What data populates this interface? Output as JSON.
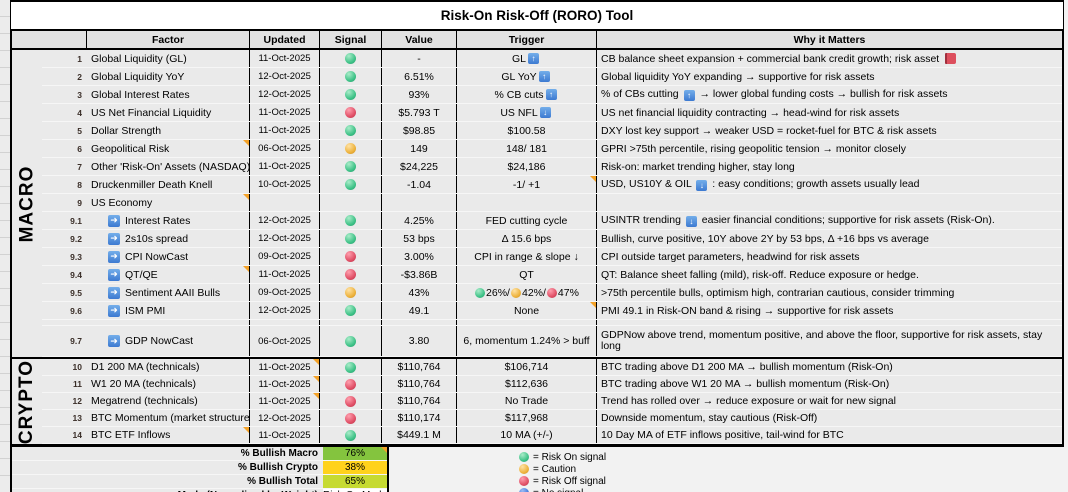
{
  "title": "Risk-On Risk-Off (RORO) Tool",
  "columns": [
    "Factor",
    "Updated",
    "Signal",
    "Value",
    "Trigger",
    "Why it Matters"
  ],
  "colors": {
    "green": "#3ec287",
    "green_hi": "#a9ecc9",
    "green_dk": "#24996a",
    "amber": "#edb23c",
    "amber_hi": "#ffe2a4",
    "amber_dk": "#c88a1e",
    "red": "#e04f66",
    "red_hi": "#ff9fae",
    "red_dk": "#b53248",
    "blue": "#4579dd",
    "blue_hi": "#9cbdf5",
    "blue_dk": "#2b56b0",
    "note": "#f3a229",
    "macro_pct_bg": "#84c43e",
    "crypto_pct_bg": "#ffd21c",
    "total_pct_bg": "#c6da32",
    "mode_bg": "#ffffff"
  },
  "sections": [
    {
      "name": "MACRO",
      "rows": [
        {
          "num": "1",
          "factor": "Global Liquidity (GL)",
          "sub": false,
          "updated": "11-Oct-2025",
          "signal": "green",
          "value": "-",
          "trigger": "GL [up]",
          "why": "CB balance sheet expansion + commercial bank credit growth; risk asset [book]",
          "note": ""
        },
        {
          "num": "2",
          "factor": "Global Liquidity YoY",
          "sub": false,
          "updated": "12-Oct-2025",
          "signal": "green",
          "value": "6.51%",
          "trigger": "GL YoY [up]",
          "why": "Global liquidity YoY expanding → supportive for risk assets",
          "note": ""
        },
        {
          "num": "3",
          "factor": "Global Interest Rates",
          "sub": false,
          "updated": "12-Oct-2025",
          "signal": "green",
          "value": "93%",
          "trigger": "% CB cuts [up]",
          "why": "% of CBs cutting [up] → lower global funding costs → bullish for risk assets",
          "note": ""
        },
        {
          "num": "4",
          "factor": "US Net Financial Liquidity",
          "sub": false,
          "updated": "11-Oct-2025",
          "signal": "red",
          "value": "$5.793 T",
          "trigger": "US NFL [down]",
          "why": "US net financial liquidity contracting → head-wind for risk assets",
          "note": ""
        },
        {
          "num": "5",
          "factor": "Dollar Strength",
          "sub": false,
          "updated": "11-Oct-2025",
          "signal": "green",
          "value": "$98.85",
          "trigger": "$100.58",
          "why": "DXY lost key support → weaker USD = rocket-fuel for BTC & risk assets",
          "note": ""
        },
        {
          "num": "6",
          "factor": "Geopolitical Risk",
          "sub": false,
          "updated": "06-Oct-2025",
          "signal": "amber",
          "value": "149",
          "trigger": "148/ 181",
          "why": "GPRI >75th percentile, rising geopolitic tension → monitor closely",
          "note": "factor"
        },
        {
          "num": "7",
          "factor": "Other 'Risk-On' Assets (NASDAQ)",
          "sub": false,
          "updated": "11-Oct-2025",
          "signal": "green",
          "value": "$24,225",
          "trigger": "$24,186",
          "why": "Risk-on: market trending higher, stay long",
          "note": ""
        },
        {
          "num": "8",
          "factor": "Druckenmiller Death Knell",
          "sub": false,
          "updated": "10-Oct-2025",
          "signal": "green",
          "value": "-1.04",
          "trigger": "-1/ +1",
          "why": "USD, US10Y & OIL [down] : easy conditions; growth assets usually lead",
          "note": "trigger"
        },
        {
          "num": "9",
          "factor": "US Economy",
          "sub": false,
          "updated": "",
          "signal": "",
          "value": "",
          "trigger": "",
          "why": "",
          "note": "factor"
        },
        {
          "num": "9.1",
          "factor": "Interest Rates",
          "sub": true,
          "updated": "12-Oct-2025",
          "signal": "green",
          "value": "4.25%",
          "trigger": "FED cutting cycle",
          "why": "USINTR trending [down] easier financial conditions; supportive for risk assets (Risk-On).",
          "note": ""
        },
        {
          "num": "9.2",
          "factor": "2s10s spread",
          "sub": true,
          "updated": "12-Oct-2025",
          "signal": "green",
          "value": "53 bps",
          "trigger": "Δ 15.6 bps",
          "why": "Bullish, curve positive, 10Y above 2Y by 53 bps, Δ +16 bps vs average",
          "note": ""
        },
        {
          "num": "9.3",
          "factor": "CPI NowCast",
          "sub": true,
          "updated": "09-Oct-2025",
          "signal": "red",
          "value": "3.00%",
          "trigger": "CPI in range & slope ↓",
          "why": "CPI outside target parameters, headwind for risk assets",
          "note": ""
        },
        {
          "num": "9.4",
          "factor": "QT/QE",
          "sub": true,
          "updated": "11-Oct-2025",
          "signal": "red",
          "value": "-$3.86B",
          "trigger": "QT",
          "why": "QT: Balance sheet falling (mild), risk-off. Reduce exposure or hedge.",
          "note": "factor"
        },
        {
          "num": "9.5",
          "factor": "Sentiment AAII Bulls",
          "sub": true,
          "updated": "09-Oct-2025",
          "signal": "amber",
          "value": "43%",
          "trigger": "[gball] 26%/ [aball] 42%/ [rball] 47%",
          "why": ">75th percentile bulls, optimism high, contrarian cautious, consider trimming",
          "note": ""
        },
        {
          "num": "9.6",
          "factor": "ISM PMI",
          "sub": true,
          "updated": "12-Oct-2025",
          "signal": "green",
          "value": "49.1",
          "trigger": "None",
          "why": "PMI 49.1 in Risk-ON band & rising → supportive for risk assets",
          "note": "trigger"
        },
        {
          "spacer": true
        },
        {
          "num": "9.7",
          "factor": "GDP NowCast",
          "sub": true,
          "updated": "06-Oct-2025",
          "signal": "green",
          "value": "3.80",
          "trigger": "6, momentum 1.24% > buff",
          "why": "GDPNow above trend, momentum positive, and above the floor, supportive for risk assets, stay long",
          "note": "",
          "tall": true
        }
      ]
    },
    {
      "name": "CRYPTO",
      "rows": [
        {
          "num": "10",
          "factor": "D1 200 MA (technicals)",
          "sub": false,
          "updated": "11-Oct-2025",
          "signal": "green",
          "value": "$110,764",
          "trigger": "$106,714",
          "why": "BTC trading above D1 200 MA → bullish momentum (Risk-On)",
          "note": "updated"
        },
        {
          "num": "11",
          "factor": "W1 20 MA (technicals)",
          "sub": false,
          "updated": "11-Oct-2025",
          "signal": "red",
          "value": "$110,764",
          "trigger": "$112,636",
          "why": "BTC trading above W1 20 MA → bullish momentum (Risk-On)",
          "note": "updated"
        },
        {
          "num": "12",
          "factor": "Megatrend (technicals)",
          "sub": false,
          "updated": "11-Oct-2025",
          "signal": "red",
          "value": "$110,764",
          "trigger": "No Trade",
          "why": "Trend has rolled over → reduce exposure or wait for new signal",
          "note": "updated"
        },
        {
          "num": "13",
          "factor": "BTC Momentum (market structure)",
          "sub": false,
          "updated": "12-Oct-2025",
          "signal": "red",
          "value": "$110,174",
          "trigger": "$117,968",
          "why": "Downside momentum, stay cautious (Risk-Off)",
          "note": ""
        },
        {
          "num": "14",
          "factor": "BTC ETF Inflows",
          "sub": false,
          "updated": "11-Oct-2025",
          "signal": "green",
          "value": "$449.1 M",
          "trigger": "10 MA (+/-)",
          "why": "10 Day MA of ETF inflows positive, tail-wind for BTC",
          "note": "factor"
        }
      ]
    }
  ],
  "summary": [
    {
      "label": "% Bullish Macro",
      "value": "76%",
      "bg": "macro_pct_bg",
      "note": true
    },
    {
      "label": "% Bullish Crypto",
      "value": "38%",
      "bg": "crypto_pct_bg",
      "note": false
    },
    {
      "label": "% Bullish Total",
      "value": "65%",
      "bg": "total_pct_bg",
      "note": false
    },
    {
      "label": "Mode (Normalised by Weight)",
      "value": "Risk-On Mode",
      "bg": "mode_bg",
      "note": false
    }
  ],
  "legend": [
    {
      "color": "green",
      "label": "= Risk On signal"
    },
    {
      "color": "amber",
      "label": "= Caution"
    },
    {
      "color": "red",
      "label": "= Risk Off signal"
    },
    {
      "color": "blue",
      "label": "= No signal"
    }
  ]
}
